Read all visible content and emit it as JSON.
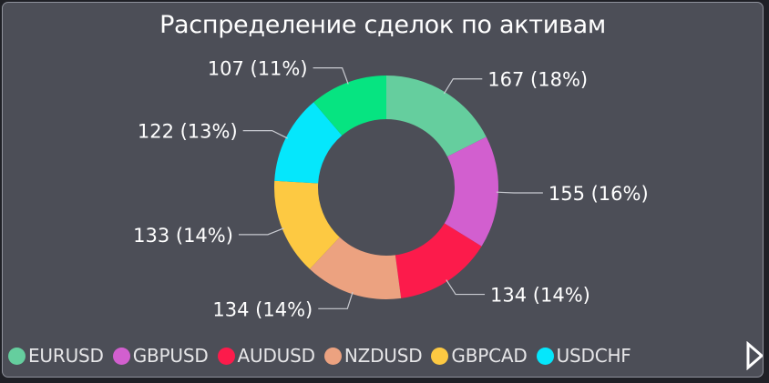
{
  "chart_data": {
    "type": "pie",
    "title": "Распределение сделок по активам",
    "donut": true,
    "legend_position": "bottom",
    "slices": [
      {
        "name": "EURUSD",
        "value": 167,
        "label": "167 (18%)",
        "color": "#65ce9e"
      },
      {
        "name": "GBPUSD",
        "value": 155,
        "label": "155 (16%)",
        "color": "#d25fcf"
      },
      {
        "name": "AUDUSD",
        "value": 134,
        "label": "134 (14%)",
        "color": "#fc1b4b"
      },
      {
        "name": "NZDUSD",
        "value": 134,
        "label": "134 (14%)",
        "color": "#eca280"
      },
      {
        "name": "GBPCAD",
        "value": 133,
        "label": "133 (14%)",
        "color": "#fdc942"
      },
      {
        "name": "USDCHF",
        "value": 122,
        "label": "122 (13%)",
        "color": "#05e7fc"
      },
      {
        "name": "",
        "value": 107,
        "label": "107 (11%)",
        "color": "#06e481"
      }
    ]
  },
  "legend": {
    "next_icon": "triangle-right-icon"
  }
}
